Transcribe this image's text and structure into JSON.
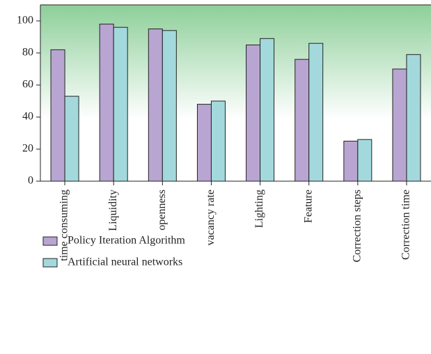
{
  "chart_data": {
    "type": "bar",
    "categories": [
      "time consuming",
      "Liquidity",
      "openness",
      "vacancy rate",
      "Lighting",
      "Feature",
      "Correction steps",
      "Correction time"
    ],
    "series": [
      {
        "name": "Policy Iteration Algorithm",
        "color": "#b9a5d1",
        "values": [
          82,
          98,
          95,
          48,
          85,
          76,
          25,
          70
        ]
      },
      {
        "name": "Artificial neural networks",
        "color": "#a3d9dc",
        "values": [
          53,
          96,
          94,
          50,
          89,
          86,
          26,
          79
        ]
      }
    ],
    "ylim": [
      0,
      110
    ],
    "yticks": [
      0,
      20,
      40,
      60,
      80,
      100
    ]
  }
}
